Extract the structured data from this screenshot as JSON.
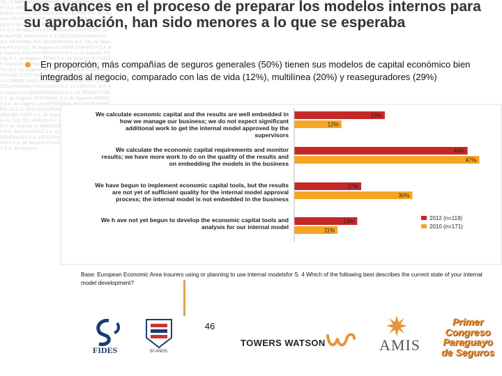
{
  "background_text": "VE, LA MERIDIONAL GRUPO SEN MAPFRE PARAGUAY S.A. ASEGURADORA DEL ESTE LA PARAGUAYA NUEVA CIA DE SEGUROS S.A. LA RURAL S.A. de Seguros GRUPO DEL SUR SEGUROS CHACO S.A. de Seguros ATALAYA S.A. de Seguros TAJY S.A. LA AGRICOLA S.A. de Seguros LA MERIDIONAL GRUPO DEL SUR MAPFRE PARAGUAY S.A. SEGUROS PARAGUAY S.A. REGIONAL S.A. SOLIDARIDAD S.A. Cia. de Seguros ATLAS S.A. de Seguros ALIANZA GARANTIA S.A. de Seguros ATALAYA PARAGUAYO S.A. de Seguros ROYAL S.A. de Seguros TENIX S.A. de Seguros SEGUROS SANCOR PATRIA S.A. de Seguros INTERCONTINENTAL S.A. de Seguros LA PARAGUAYA S.A. ASEGURADORA DEL ESTE NACIONAL COOPERATIVO SANCOR LA CONSOLIDADA S.A. ASEGURADORA TAJY S.A. ASEGURADORA PARAGUAYA S.A. LA CENTRAL S.A. de Seguros LA INDEPENDENCIA S.A. EL PRODUCTOR S.A. de Seguros CENTENIAL S.A. de Seguros AMERICA S.A. de Seguros LA MERIDIONAL SEGUROS GENERALES S.A. SEGUROS PARAGUAY S.A. ASEGURADORA DEL ESTE S.A. de Seguros PATRIA S.A. de Seguros EL SOL DEL PARAGUAY S.A. MAPFRE PARAGUAY S.A. de Seguros LA MERIDIONAL MAPFRE PARAGUAY S.A. SOLIDARIDAD S.A. Cia de Seguros SEGUROS GENERALES S.A. ASEGURADORA DEL ESTE PARAGUAYA S.A. de Seguros ATALAYA S.A. de Seguros FENIX S.A. de Seguros",
  "slide": {
    "title": "Los avances en el proceso de preparar los modelos internos para su aprobación, han sido menores a lo que se esperaba",
    "bullet": "En proporción, más compañías de seguros generales (50%) tienen sus modelos de capital económico bien integrados al negocio, comparado con las de vida (12%), multilínea (20%) y reaseguradores (29%)",
    "base_note": "Base: European Economic Area insurers using or planning to use internal modelsfor S. 4 Which of the following best describes the current state of your internal model development?",
    "page_number": "46",
    "bullet_color": "#f0a030"
  },
  "chart_data": {
    "type": "bar",
    "orientation": "horizontal",
    "categories": [
      "We calculate economic capital and the results are well embedded in how we manage our business; we do not expect significant additional work to get the internal model approved by the supervisors",
      "We calculate the economic capital requirements and monitor results; we have more work to do on the quality of the results and on embedding the models in the business",
      "We have begun to implement economic capital tools, but the results are not yet of sufficient quality for the internal model approval process; the internal model is not embedded in the business",
      "We h ave not yet begun to develop the economic capital tools and analysis for our internal model"
    ],
    "series": [
      {
        "name": "2012 (n=119)",
        "values": [
          23,
          44,
          17,
          16
        ],
        "labels": [
          "23%",
          "44%",
          "17%",
          "16%"
        ],
        "color": "#c62828"
      },
      {
        "name": "2010 (n=171)",
        "values": [
          12,
          47,
          30,
          11
        ],
        "labels": [
          "12%",
          "47%",
          "30%",
          "11%"
        ],
        "color": "#f5a623"
      }
    ],
    "legend_position": "bottom-right",
    "grid": false
  },
  "logos": {
    "fides": "FIDES",
    "anios": "50 AÑOS",
    "towers_watson": "TOWERS WATSON",
    "amis": "AMIS",
    "congreso_lines": [
      "Primer",
      "Congreso",
      "Paraguayo",
      "de Seguros"
    ]
  },
  "colors": {
    "title": "#333333",
    "vline": "#e0a050",
    "congreso": "#e8943a",
    "fides_blue": "#1b3c74"
  }
}
